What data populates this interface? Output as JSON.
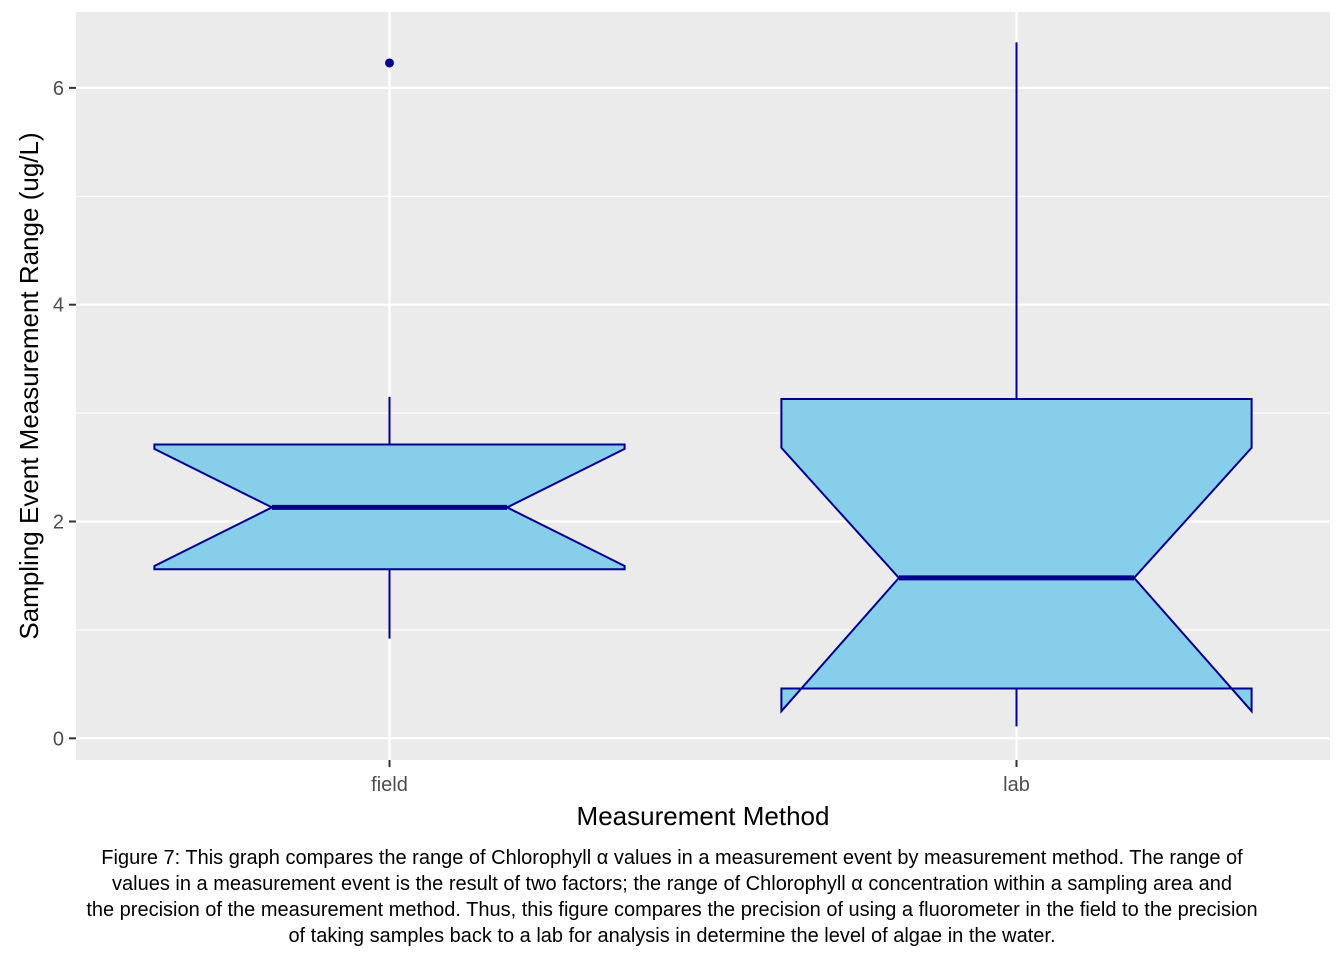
{
  "chart_data": {
    "type": "boxplot",
    "notched": true,
    "categories": [
      "field",
      "lab"
    ],
    "xlabel": "Measurement Method",
    "ylabel": "Sampling Event Measurement Range (ug/L)",
    "ylim": [
      -0.2,
      6.7
    ],
    "yticks": [
      0,
      2,
      4,
      6
    ],
    "grid": true,
    "boxes": [
      {
        "category": "field",
        "whisker_low": 0.92,
        "q1": 1.56,
        "median": 2.13,
        "q3": 2.71,
        "notch_low": 1.59,
        "notch_high": 2.67,
        "whisker_high": 3.15,
        "outliers": [
          6.23
        ]
      },
      {
        "category": "lab",
        "whisker_low": 0.11,
        "q1": 0.46,
        "median": 1.48,
        "q3": 3.13,
        "notch_low": 0.25,
        "notch_high": 2.68,
        "whisker_high": 6.42,
        "outliers": []
      }
    ],
    "colors": {
      "fill": "#87CEEB",
      "line": "#00008B",
      "panel": "#EBEBEB",
      "grid": "#FFFFFF"
    }
  },
  "caption": {
    "lines": [
      "Figure 7: This graph compares the range of Chlorophyll α values in a measurement event by measurement method. The range of",
      "values in a measurement event is the result of two factors; the range of Chlorophyll α concentration within a sampling area and",
      "the precision of the measurement method. Thus, this figure compares the precision of using a fluorometer in the field to the precision",
      "of taking samples back to a lab for analysis in determine the level of algae in the water."
    ]
  }
}
